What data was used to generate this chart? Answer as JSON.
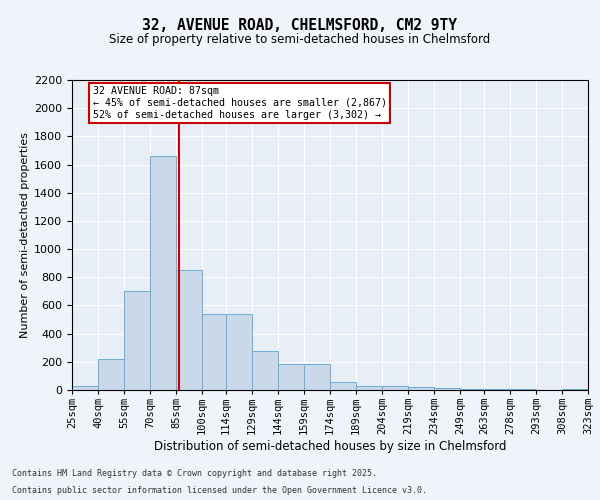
{
  "title": "32, AVENUE ROAD, CHELMSFORD, CM2 9TY",
  "subtitle": "Size of property relative to semi-detached houses in Chelmsford",
  "xlabel": "Distribution of semi-detached houses by size in Chelmsford",
  "ylabel": "Number of semi-detached properties",
  "property_size": 87,
  "annotation_text_line1": "32 AVENUE ROAD: 87sqm",
  "annotation_text_line2": "← 45% of semi-detached houses are smaller (2,867)",
  "annotation_text_line3": "52% of semi-detached houses are larger (3,302) →",
  "footnote1": "Contains HM Land Registry data © Crown copyright and database right 2025.",
  "footnote2": "Contains public sector information licensed under the Open Government Licence v3.0.",
  "bar_color": "#c9d9ea",
  "bar_edge_color": "#6aaed6",
  "redline_color": "#cc0000",
  "annotation_box_color": "#cc0000",
  "background_color": "#e8eef6",
  "fig_background_color": "#f0f4fa",
  "grid_color": "#ffffff",
  "bins": [
    25,
    40,
    55,
    70,
    85,
    100,
    114,
    129,
    144,
    159,
    174,
    189,
    204,
    219,
    234,
    249,
    263,
    278,
    293,
    308,
    323
  ],
  "bin_labels": [
    "25sqm",
    "40sqm",
    "55sqm",
    "70sqm",
    "85sqm",
    "100sqm",
    "114sqm",
    "129sqm",
    "144sqm",
    "159sqm",
    "174sqm",
    "189sqm",
    "204sqm",
    "219sqm",
    "234sqm",
    "249sqm",
    "263sqm",
    "278sqm",
    "293sqm",
    "308sqm",
    "323sqm"
  ],
  "values": [
    30,
    220,
    700,
    1660,
    850,
    540,
    540,
    280,
    185,
    185,
    55,
    30,
    25,
    20,
    15,
    10,
    7,
    5,
    0,
    5
  ],
  "ylim": [
    0,
    2200
  ],
  "yticks": [
    0,
    200,
    400,
    600,
    800,
    1000,
    1200,
    1400,
    1600,
    1800,
    2000,
    2200
  ]
}
